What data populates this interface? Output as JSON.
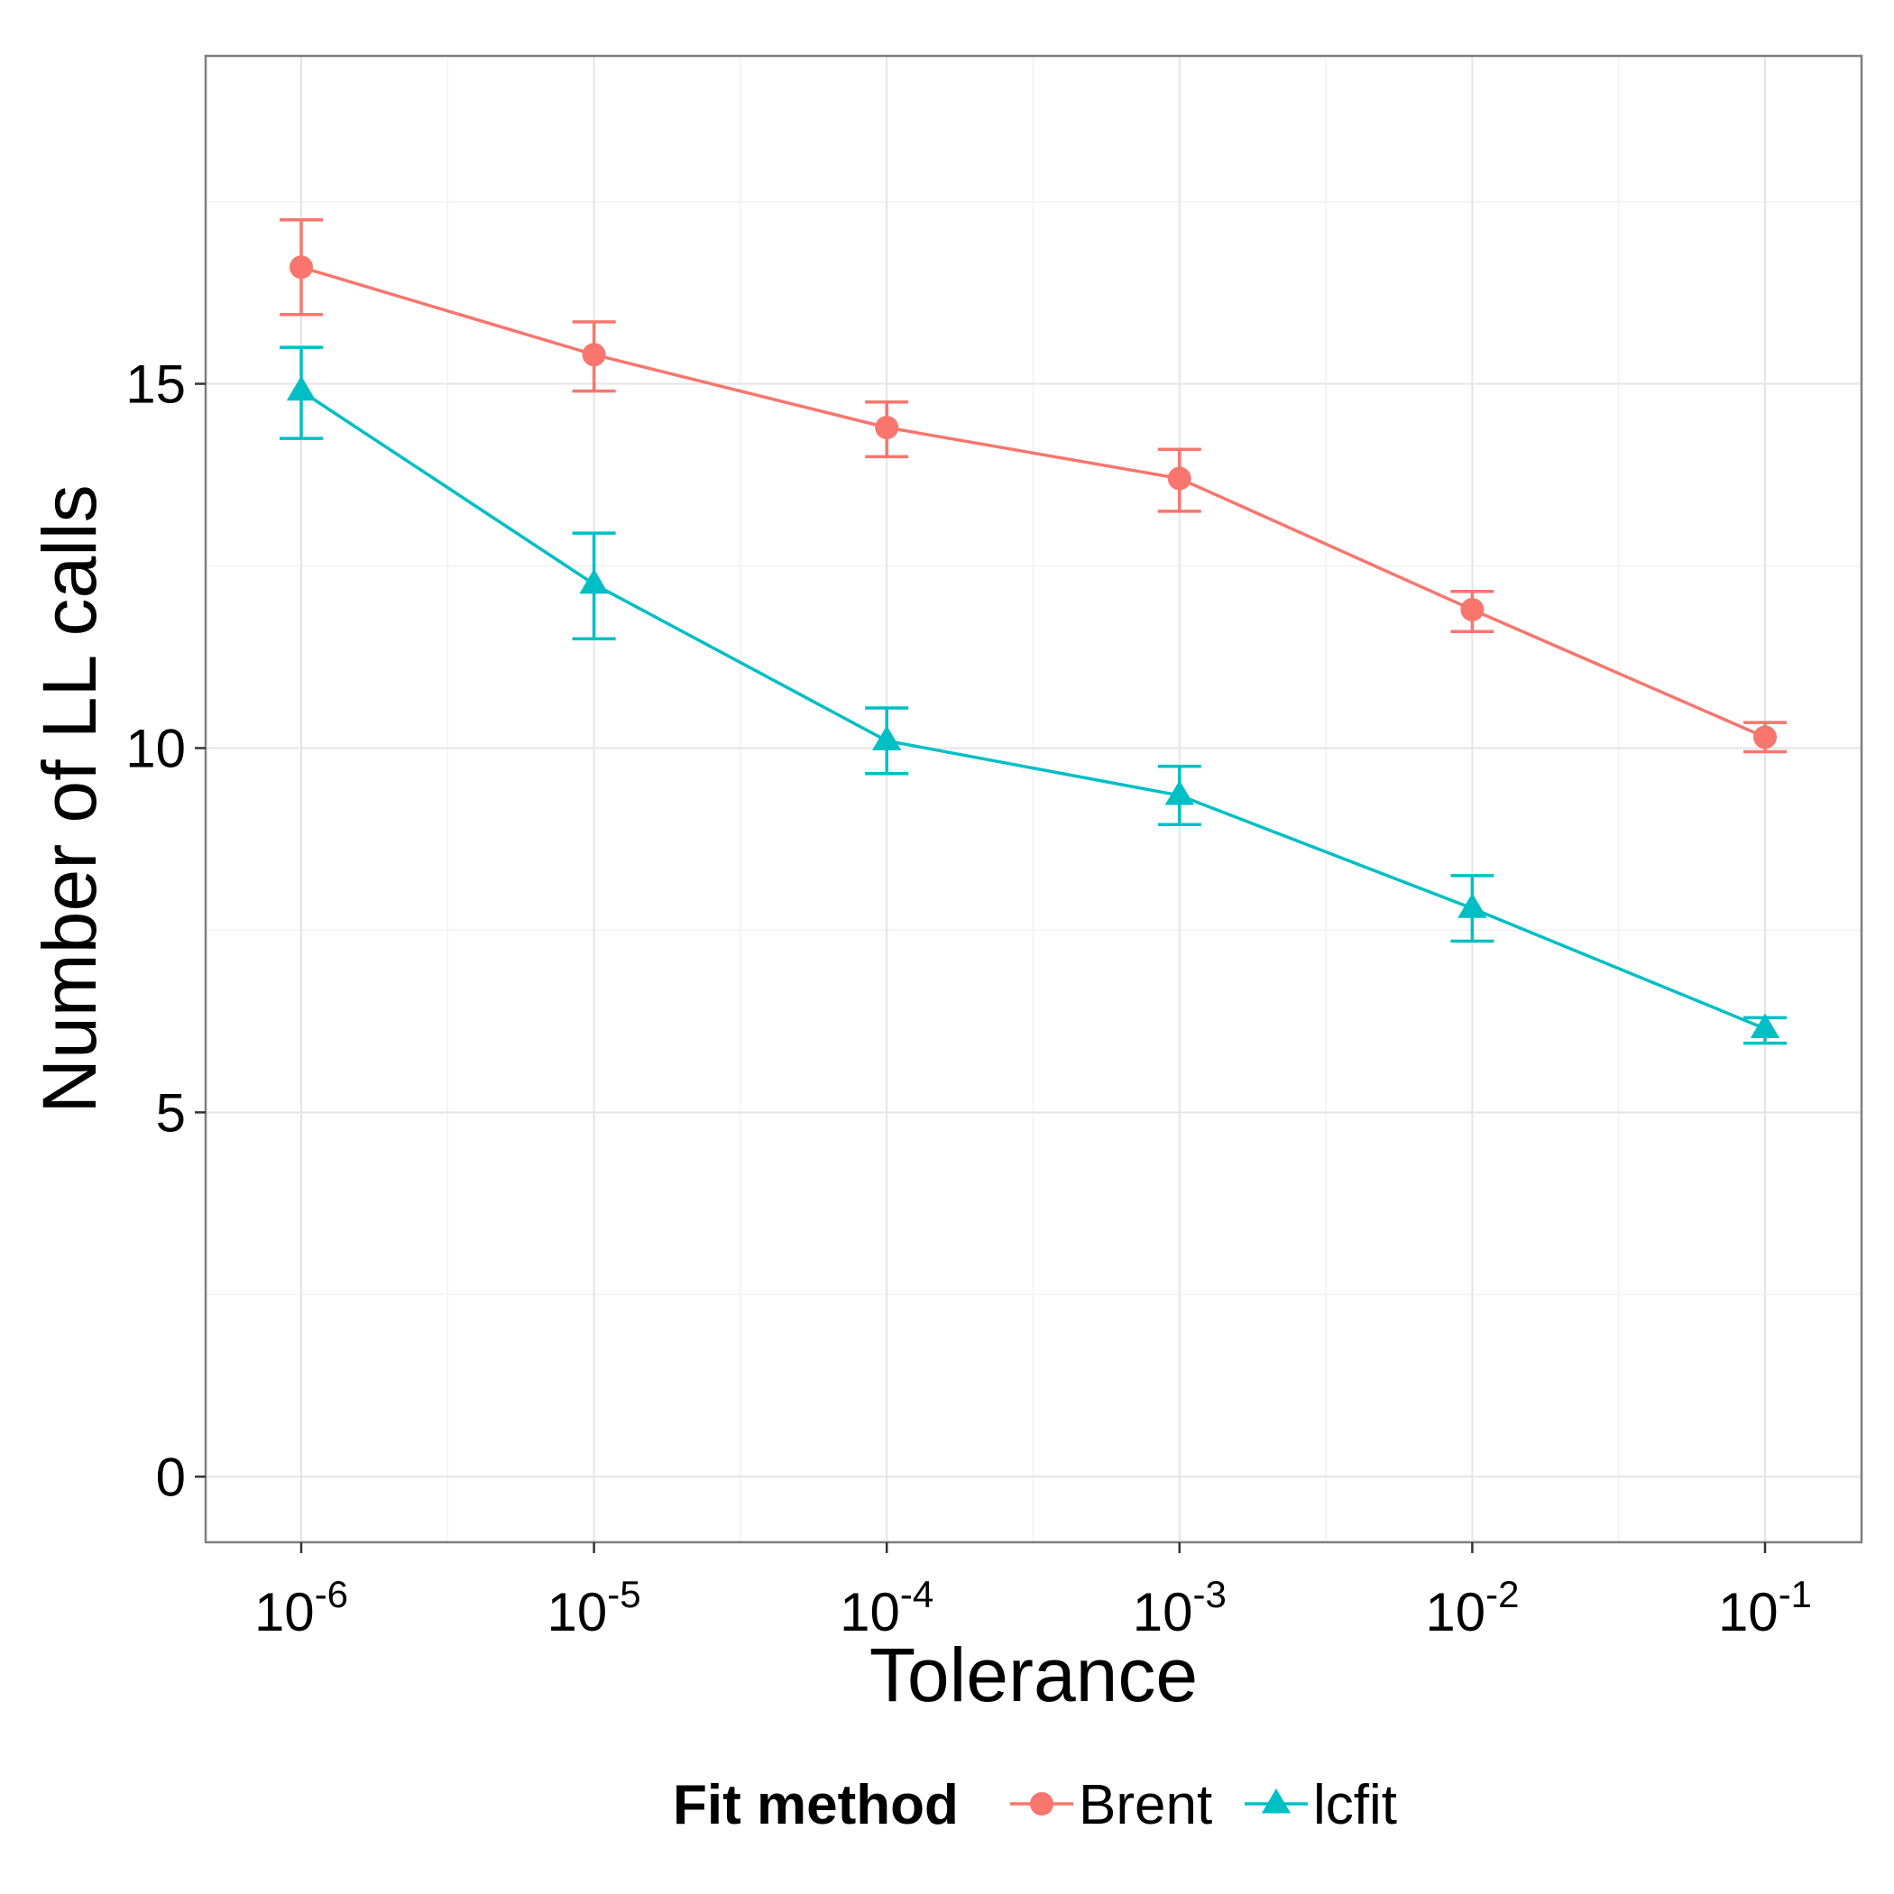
{
  "chart_data": {
    "type": "line",
    "title": "",
    "xlabel": "Tolerance",
    "ylabel": "Number of LL calls",
    "x_scale": "log10",
    "x": [
      1e-06,
      1e-05,
      0.0001,
      0.001,
      0.01,
      0.1
    ],
    "x_tick_labels": [
      {
        "base": "10",
        "exp": "-6"
      },
      {
        "base": "10",
        "exp": "-5"
      },
      {
        "base": "10",
        "exp": "-4"
      },
      {
        "base": "10",
        "exp": "-3"
      },
      {
        "base": "10",
        "exp": "-2"
      },
      {
        "base": "10",
        "exp": "-1"
      }
    ],
    "y_ticks": [
      0,
      5,
      10,
      15
    ],
    "y_tick_labels": [
      "0",
      "5",
      "10",
      "15"
    ],
    "ylim": [
      -0.9,
      19.5
    ],
    "grid": true,
    "legend": {
      "title": "Fit method",
      "placement": "bottom"
    },
    "series": [
      {
        "name": "Brent",
        "color": "#F8766D",
        "marker": "circle",
        "values": [
          16.6,
          15.4,
          14.4,
          13.7,
          11.9,
          10.15
        ],
        "err_low": [
          15.95,
          14.9,
          14.0,
          13.25,
          11.6,
          9.95
        ],
        "err_high": [
          17.25,
          15.85,
          14.75,
          14.1,
          12.15,
          10.35
        ]
      },
      {
        "name": "lcfit",
        "color": "#00BFC4",
        "marker": "triangle",
        "values": [
          14.9,
          12.25,
          10.1,
          9.35,
          7.8,
          6.15
        ],
        "err_low": [
          14.25,
          11.5,
          9.65,
          8.95,
          7.35,
          5.95
        ],
        "err_high": [
          15.5,
          12.95,
          10.55,
          9.75,
          8.25,
          6.3
        ]
      }
    ]
  }
}
